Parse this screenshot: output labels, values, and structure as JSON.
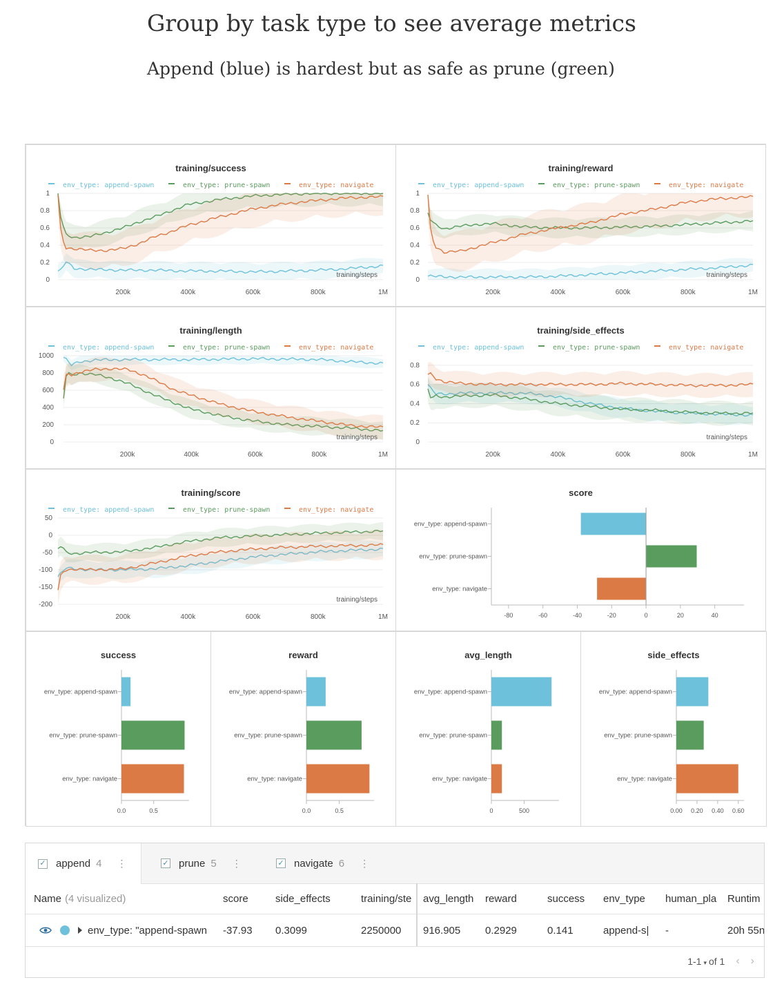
{
  "header": {
    "title": "Group by task type to see average metrics",
    "subtitle": "Append (blue) is hardest but as safe as prune (green)"
  },
  "colors": {
    "append": "#6dc1da",
    "prune": "#5a9b5e",
    "navigate": "#dc7a46"
  },
  "legend": [
    "env_type: append-spawn",
    "env_type: prune-spawn",
    "env_type: navigate"
  ],
  "chart_data": [
    {
      "type": "line",
      "title": "training/success",
      "xlabel": "training/steps",
      "xlim": [
        0,
        1000000
      ],
      "ylim": [
        0,
        1
      ],
      "xticks": [
        200000,
        400000,
        600000,
        800000,
        1000000
      ],
      "xtick_labels": [
        "200k",
        "400k",
        "600k",
        "800k",
        "1M"
      ],
      "yticks": [
        0,
        0.2,
        0.4,
        0.6,
        0.8,
        1
      ],
      "ytick_labels": [
        "0",
        "0.2",
        "0.4",
        "0.6",
        "0.8",
        "1"
      ],
      "series": [
        {
          "name": "env_type: append-spawn",
          "x": [
            0,
            10000,
            25000,
            50000,
            100000,
            200000,
            300000,
            400000,
            500000,
            600000,
            700000,
            800000,
            900000,
            1000000
          ],
          "y": [
            0.1,
            0.11,
            0.21,
            0.13,
            0.12,
            0.11,
            0.11,
            0.1,
            0.1,
            0.09,
            0.1,
            0.11,
            0.13,
            0.16
          ],
          "band": 0.1
        },
        {
          "name": "env_type: prune-spawn",
          "x": [
            0,
            10000,
            25000,
            50000,
            100000,
            150000,
            200000,
            250000,
            300000,
            350000,
            400000,
            500000,
            600000,
            700000,
            800000,
            900000,
            1000000
          ],
          "y": [
            1,
            0.68,
            0.52,
            0.49,
            0.5,
            0.55,
            0.6,
            0.67,
            0.73,
            0.8,
            0.87,
            0.93,
            0.97,
            0.99,
            1,
            1,
            1
          ],
          "band": 0.14
        },
        {
          "name": "env_type: navigate",
          "x": [
            0,
            10000,
            25000,
            50000,
            100000,
            150000,
            200000,
            250000,
            300000,
            350000,
            400000,
            500000,
            600000,
            700000,
            800000,
            900000,
            1000000
          ],
          "y": [
            0.98,
            0.5,
            0.37,
            0.36,
            0.34,
            0.34,
            0.36,
            0.42,
            0.5,
            0.56,
            0.63,
            0.73,
            0.82,
            0.88,
            0.92,
            0.95,
            0.96
          ],
          "band": 0.2
        }
      ]
    },
    {
      "type": "line",
      "title": "training/reward",
      "xlabel": "training/steps",
      "xlim": [
        0,
        1000000
      ],
      "ylim": [
        0,
        1
      ],
      "xticks": [
        200000,
        400000,
        600000,
        800000,
        1000000
      ],
      "xtick_labels": [
        "200k",
        "400k",
        "600k",
        "800k",
        "1M"
      ],
      "yticks": [
        0,
        0.2,
        0.4,
        0.6,
        0.8,
        1
      ],
      "ytick_labels": [
        "0",
        "0.2",
        "0.4",
        "0.6",
        "0.8",
        "1"
      ],
      "series": [
        {
          "name": "env_type: append-spawn",
          "x": [
            0,
            100000,
            200000,
            300000,
            400000,
            500000,
            600000,
            700000,
            800000,
            900000,
            1000000
          ],
          "y": [
            0.04,
            0.03,
            0.03,
            0.03,
            0.04,
            0.06,
            0.08,
            0.1,
            0.12,
            0.14,
            0.17
          ],
          "band": 0.09
        },
        {
          "name": "env_type: prune-spawn",
          "x": [
            0,
            10000,
            25000,
            50000,
            100000,
            150000,
            200000,
            250000,
            300000,
            400000,
            500000,
            600000,
            700000,
            800000,
            900000,
            1000000
          ],
          "y": [
            0.77,
            0.68,
            0.63,
            0.59,
            0.62,
            0.64,
            0.65,
            0.63,
            0.61,
            0.6,
            0.6,
            0.61,
            0.62,
            0.64,
            0.66,
            0.68
          ],
          "band": 0.11
        },
        {
          "name": "env_type: navigate",
          "x": [
            0,
            10000,
            25000,
            50000,
            100000,
            150000,
            200000,
            250000,
            300000,
            400000,
            500000,
            600000,
            700000,
            800000,
            900000,
            1000000
          ],
          "y": [
            0.98,
            0.5,
            0.38,
            0.32,
            0.33,
            0.38,
            0.43,
            0.48,
            0.53,
            0.6,
            0.66,
            0.76,
            0.82,
            0.9,
            0.94,
            0.96
          ],
          "band": 0.22
        }
      ]
    },
    {
      "type": "line",
      "title": "training/length",
      "xlabel": "training/steps",
      "xlim": [
        0,
        1000000
      ],
      "ylim": [
        0,
        1000
      ],
      "xticks": [
        200000,
        400000,
        600000,
        800000,
        1000000
      ],
      "xtick_labels": [
        "200k",
        "400k",
        "600k",
        "800k",
        "1M"
      ],
      "yticks": [
        0,
        200,
        400,
        600,
        800,
        1000
      ],
      "ytick_labels": [
        "0",
        "200",
        "400",
        "600",
        "800",
        "1000"
      ],
      "series": [
        {
          "name": "env_type: append-spawn",
          "x": [
            0,
            10000,
            25000,
            50000,
            100000,
            200000,
            300000,
            400000,
            500000,
            600000,
            700000,
            800000,
            900000,
            1000000
          ],
          "y": [
            980,
            950,
            890,
            930,
            950,
            955,
            955,
            955,
            960,
            965,
            960,
            955,
            930,
            910
          ],
          "band": 60
        },
        {
          "name": "env_type: prune-spawn",
          "x": [
            0,
            10000,
            25000,
            50000,
            100000,
            150000,
            200000,
            250000,
            300000,
            350000,
            400000,
            500000,
            600000,
            700000,
            800000,
            900000,
            1000000
          ],
          "y": [
            500,
            820,
            770,
            800,
            780,
            740,
            680,
            600,
            520,
            450,
            380,
            300,
            240,
            200,
            180,
            160,
            130
          ],
          "band": 100
        },
        {
          "name": "env_type: navigate",
          "x": [
            0,
            10000,
            25000,
            50000,
            100000,
            150000,
            200000,
            250000,
            300000,
            350000,
            400000,
            500000,
            600000,
            700000,
            800000,
            900000,
            1000000
          ],
          "y": [
            600,
            800,
            780,
            810,
            840,
            850,
            840,
            780,
            690,
            600,
            540,
            430,
            350,
            290,
            240,
            190,
            170
          ],
          "band": 130
        }
      ]
    },
    {
      "type": "line",
      "title": "training/side_effects",
      "xlabel": "training/steps",
      "xlim": [
        0,
        1000000
      ],
      "ylim": [
        0,
        0.9
      ],
      "xticks": [
        200000,
        400000,
        600000,
        800000,
        1000000
      ],
      "xtick_labels": [
        "200k",
        "400k",
        "600k",
        "800k",
        "1M"
      ],
      "yticks": [
        0,
        0.2,
        0.4,
        0.6,
        0.8
      ],
      "ytick_labels": [
        "0",
        "0.2",
        "0.4",
        "0.6",
        "0.8"
      ],
      "series": [
        {
          "name": "env_type: append-spawn",
          "x": [
            0,
            10000,
            25000,
            50000,
            100000,
            200000,
            300000,
            400000,
            500000,
            600000,
            700000,
            800000,
            900000,
            1000000
          ],
          "y": [
            0.6,
            0.55,
            0.5,
            0.5,
            0.51,
            0.51,
            0.51,
            0.47,
            0.4,
            0.35,
            0.32,
            0.3,
            0.29,
            0.28
          ],
          "band": 0.1
        },
        {
          "name": "env_type: prune-spawn",
          "x": [
            0,
            10000,
            25000,
            50000,
            100000,
            200000,
            300000,
            400000,
            500000,
            600000,
            700000,
            800000,
            900000,
            1000000
          ],
          "y": [
            0.55,
            0.45,
            0.48,
            0.47,
            0.48,
            0.49,
            0.45,
            0.4,
            0.37,
            0.34,
            0.33,
            0.31,
            0.3,
            0.3
          ],
          "band": 0.12
        },
        {
          "name": "env_type: navigate",
          "x": [
            0,
            10000,
            25000,
            50000,
            100000,
            200000,
            300000,
            400000,
            500000,
            600000,
            700000,
            800000,
            900000,
            1000000
          ],
          "y": [
            0.7,
            0.71,
            0.66,
            0.63,
            0.61,
            0.6,
            0.6,
            0.6,
            0.6,
            0.61,
            0.6,
            0.59,
            0.59,
            0.6
          ],
          "band": 0.12
        }
      ]
    },
    {
      "type": "line",
      "title": "training/score",
      "xlabel": "training/steps",
      "xlim": [
        0,
        1000000
      ],
      "ylim": [
        -200,
        50
      ],
      "xticks": [
        200000,
        400000,
        600000,
        800000,
        1000000
      ],
      "xtick_labels": [
        "200k",
        "400k",
        "600k",
        "800k",
        "1M"
      ],
      "yticks": [
        -200,
        -150,
        -100,
        -50,
        0,
        50
      ],
      "ytick_labels": [
        "-200",
        "-150",
        "-100",
        "-50",
        "0",
        "50"
      ],
      "series": [
        {
          "name": "env_type: append-spawn",
          "x": [
            0,
            10000,
            25000,
            50000,
            100000,
            200000,
            300000,
            400000,
            500000,
            600000,
            700000,
            800000,
            900000,
            1000000
          ],
          "y": [
            -120,
            -110,
            -95,
            -97,
            -100,
            -100,
            -97,
            -88,
            -75,
            -63,
            -55,
            -48,
            -44,
            -40
          ],
          "band": 25
        },
        {
          "name": "env_type: prune-spawn",
          "x": [
            0,
            10000,
            25000,
            50000,
            100000,
            200000,
            300000,
            400000,
            500000,
            600000,
            700000,
            800000,
            900000,
            1000000
          ],
          "y": [
            -40,
            -30,
            -50,
            -53,
            -50,
            -48,
            -35,
            -18,
            -7,
            -2,
            2,
            6,
            9,
            12
          ],
          "band": 25
        },
        {
          "name": "env_type: navigate",
          "x": [
            0,
            10000,
            25000,
            50000,
            100000,
            200000,
            300000,
            400000,
            500000,
            600000,
            700000,
            800000,
            900000,
            1000000
          ],
          "y": [
            -160,
            -110,
            -100,
            -98,
            -100,
            -98,
            -80,
            -60,
            -48,
            -40,
            -35,
            -32,
            -30,
            -28
          ],
          "band": 40
        }
      ]
    },
    {
      "type": "bar",
      "orientation": "horizontal",
      "title": "score",
      "categories": [
        "env_type: append-spawn",
        "env_type: prune-spawn",
        "env_type: navigate"
      ],
      "values": [
        -37.93,
        29.5,
        -28.5
      ],
      "xlim": [
        -90,
        57
      ],
      "xticks": [
        -80,
        -60,
        -40,
        -20,
        0,
        20,
        40
      ],
      "xtick_labels": [
        "-80",
        "-60",
        "-40",
        "-20",
        "0",
        "20",
        "40"
      ]
    },
    {
      "type": "bar",
      "orientation": "horizontal",
      "title": "success",
      "categories": [
        "env_type: append-spawn",
        "env_type: prune-spawn",
        "env_type: navigate"
      ],
      "values": [
        0.141,
        0.98,
        0.97
      ],
      "xlim": [
        0,
        1.05
      ],
      "xticks": [
        0,
        0.5
      ],
      "xtick_labels": [
        "0.0",
        "0.5"
      ]
    },
    {
      "type": "bar",
      "orientation": "horizontal",
      "title": "reward",
      "categories": [
        "env_type: append-spawn",
        "env_type: prune-spawn",
        "env_type: navigate"
      ],
      "values": [
        0.2929,
        0.84,
        0.96
      ],
      "xlim": [
        0,
        1.03
      ],
      "xticks": [
        0,
        0.5
      ],
      "xtick_labels": [
        "0.0",
        "0.5"
      ]
    },
    {
      "type": "bar",
      "orientation": "horizontal",
      "title": "avg_length",
      "categories": [
        "env_type: append-spawn",
        "env_type: prune-spawn",
        "env_type: navigate"
      ],
      "values": [
        916.905,
        160,
        160
      ],
      "xlim": [
        0,
        1030
      ],
      "xticks": [
        0,
        500
      ],
      "xtick_labels": [
        "0",
        "500"
      ]
    },
    {
      "type": "bar",
      "orientation": "horizontal",
      "title": "side_effects",
      "categories": [
        "env_type: append-spawn",
        "env_type: prune-spawn",
        "env_type: navigate"
      ],
      "values": [
        0.3099,
        0.265,
        0.6
      ],
      "xlim": [
        0,
        0.655
      ],
      "xticks": [
        0,
        0.2,
        0.4,
        0.6
      ],
      "xtick_labels": [
        "0.00",
        "0.20",
        "0.40",
        "0.60"
      ]
    }
  ],
  "runs": {
    "groups": [
      {
        "label": "append",
        "count": "4"
      },
      {
        "label": "prune",
        "count": "5"
      },
      {
        "label": "navigate",
        "count": "6"
      }
    ],
    "columns": {
      "name": "Name",
      "name_note": "(4 visualized)",
      "score": "score",
      "side_effects": "side_effects",
      "training_steps": "training/ste",
      "avg_length": "avg_length",
      "reward": "reward",
      "success": "success",
      "env_type": "env_type",
      "human_pla": "human_pla",
      "runtime": "Runtim"
    },
    "row": {
      "name": "env_type: \"append-spawn",
      "score": "-37.93",
      "side_effects": "0.3099",
      "training_steps": "2250000",
      "avg_length": "916.905",
      "reward": "0.2929",
      "success": "0.141",
      "env_type": "append-s|",
      "human_pla": "-",
      "runtime": "20h 55n"
    },
    "pagination": "1-1",
    "pagination_total": "of 1"
  }
}
